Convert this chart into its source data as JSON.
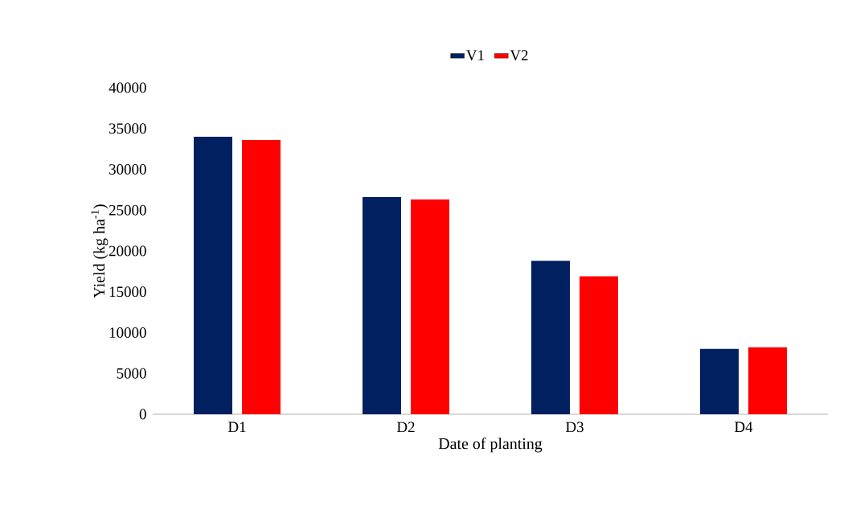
{
  "chart_data": {
    "type": "bar",
    "xlabel": "Date of planting",
    "ylabel": "Yield (kg ha$^{-1}$)",
    "categories": [
      "D1",
      "D2",
      "D3",
      "D4"
    ],
    "series": [
      {
        "name": "V1",
        "color": "#002060",
        "values": [
          34000,
          26600,
          18800,
          8000
        ]
      },
      {
        "name": "V2",
        "color": "#ff0000",
        "values": [
          33600,
          26300,
          16900,
          8200
        ]
      }
    ],
    "ylim": [
      0,
      40000
    ],
    "yticks": [
      0,
      5000,
      10000,
      15000,
      20000,
      25000,
      30000,
      35000,
      40000
    ],
    "grid": false,
    "legend": "top"
  }
}
